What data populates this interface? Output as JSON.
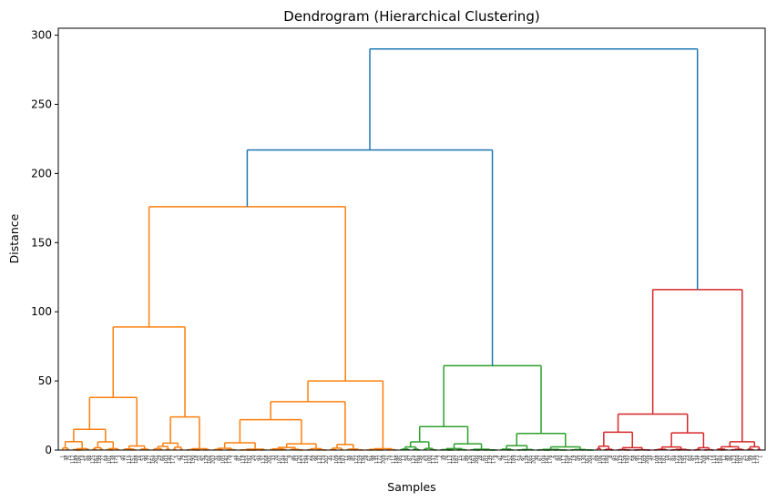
{
  "chart_data": {
    "type": "dendrogram",
    "title": "Dendrogram (Hierarchical Clustering)",
    "xlabel": "Samples",
    "ylabel": "Distance",
    "ylim": [
      0,
      305
    ],
    "yticks": [
      0,
      50,
      100,
      150,
      200,
      250,
      300
    ],
    "colors": {
      "above_threshold": "#1f77b4",
      "cluster_1": "#ff7f0e",
      "cluster_2": "#2ca02c",
      "cluster_3": "#d62728"
    },
    "leaf_count": 210,
    "merges": [
      {
        "id": "root",
        "height": 290,
        "color": "above_threshold",
        "children": [
          "A",
          "red_root"
        ]
      },
      {
        "id": "A",
        "height": 217,
        "color": "above_threshold",
        "children": [
          "orange_root",
          "green_root"
        ]
      },
      {
        "id": "orange_root",
        "height": 176,
        "color": "cluster_1",
        "children": [
          "o_left",
          "o_right"
        ]
      },
      {
        "id": "o_left",
        "height": 89,
        "color": "cluster_1",
        "children": [
          "o_ll",
          "o_lr"
        ]
      },
      {
        "id": "o_ll",
        "height": 38,
        "color": "cluster_1",
        "children": [
          "o_lll",
          "o_llr"
        ]
      },
      {
        "id": "o_lll",
        "height": 15,
        "color": "cluster_1"
      },
      {
        "id": "o_llr",
        "height": 3,
        "color": "cluster_1"
      },
      {
        "id": "o_lr",
        "height": 24,
        "color": "cluster_1",
        "children": [
          "o_lrl",
          "o_lrr"
        ]
      },
      {
        "id": "o_lrl",
        "height": 5,
        "color": "cluster_1"
      },
      {
        "id": "o_lrr",
        "height": 1,
        "color": "cluster_1"
      },
      {
        "id": "o_right",
        "height": 50,
        "color": "cluster_1",
        "children": [
          "o_rl",
          "o_rr"
        ]
      },
      {
        "id": "o_rl",
        "height": 35,
        "color": "cluster_1",
        "children": [
          "o_rll",
          "o_rlr"
        ]
      },
      {
        "id": "o_rll",
        "height": 22,
        "color": "cluster_1"
      },
      {
        "id": "o_rlr",
        "height": 4,
        "color": "cluster_1"
      },
      {
        "id": "o_rr",
        "height": 1,
        "color": "cluster_1"
      },
      {
        "id": "green_root",
        "height": 61,
        "color": "cluster_2",
        "children": [
          "g_left",
          "g_right"
        ]
      },
      {
        "id": "g_left",
        "height": 17,
        "color": "cluster_2"
      },
      {
        "id": "g_right",
        "height": 12,
        "color": "cluster_2"
      },
      {
        "id": "red_root",
        "height": 116,
        "color": "cluster_3",
        "children": [
          "r_left",
          "r_right"
        ]
      },
      {
        "id": "r_left",
        "height": 26,
        "color": "cluster_3"
      },
      {
        "id": "r_right",
        "height": 6,
        "color": "cluster_3"
      }
    ]
  }
}
